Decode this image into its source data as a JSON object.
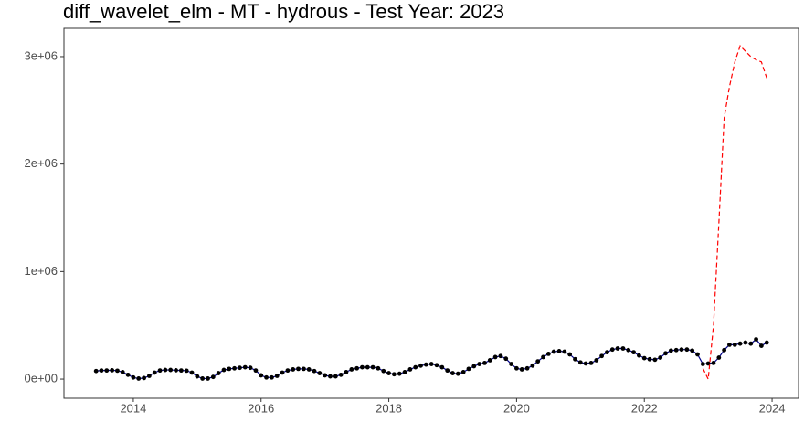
{
  "chart_data": {
    "type": "line",
    "title": "diff_wavelet_elm - MT - hydrous - Test Year: 2023",
    "xlim": [
      2012.914,
      2024.414
    ],
    "xticks": [
      2014,
      2016,
      2018,
      2020,
      2022,
      2024
    ],
    "ylim": [
      -178000,
      3263000
    ],
    "yticks": [
      {
        "value": 0,
        "label": "0e+00"
      },
      {
        "value": 1000000,
        "label": "1e+06"
      },
      {
        "value": 2000000,
        "label": "2e+06"
      },
      {
        "value": 3000000,
        "label": "3e+06"
      }
    ],
    "grid": false,
    "series": [
      {
        "color": "#00008b",
        "point_color": "#000000",
        "linestyle": "solid",
        "markers": true,
        "x": [
          2013.417,
          2013.5,
          2013.583,
          2013.667,
          2013.75,
          2013.833,
          2013.917,
          2014,
          2014.083,
          2014.167,
          2014.25,
          2014.333,
          2014.417,
          2014.5,
          2014.583,
          2014.667,
          2014.75,
          2014.833,
          2014.917,
          2015,
          2015.083,
          2015.167,
          2015.25,
          2015.333,
          2015.417,
          2015.5,
          2015.583,
          2015.667,
          2015.75,
          2015.833,
          2015.917,
          2016,
          2016.083,
          2016.167,
          2016.25,
          2016.333,
          2016.417,
          2016.5,
          2016.583,
          2016.667,
          2016.75,
          2016.833,
          2016.917,
          2017,
          2017.083,
          2017.167,
          2017.25,
          2017.333,
          2017.417,
          2017.5,
          2017.583,
          2017.667,
          2017.75,
          2017.833,
          2017.917,
          2018,
          2018.083,
          2018.167,
          2018.25,
          2018.333,
          2018.417,
          2018.5,
          2018.583,
          2018.667,
          2018.75,
          2018.833,
          2018.917,
          2019,
          2019.083,
          2019.167,
          2019.25,
          2019.333,
          2019.417,
          2019.5,
          2019.583,
          2019.667,
          2019.75,
          2019.833,
          2019.917,
          2020,
          2020.083,
          2020.167,
          2020.25,
          2020.333,
          2020.417,
          2020.5,
          2020.583,
          2020.667,
          2020.75,
          2020.833,
          2020.917,
          2021,
          2021.083,
          2021.167,
          2021.25,
          2021.333,
          2021.417,
          2021.5,
          2021.583,
          2021.667,
          2021.75,
          2021.833,
          2021.917,
          2022,
          2022.083,
          2022.167,
          2022.25,
          2022.333,
          2022.417,
          2022.5,
          2022.583,
          2022.667,
          2022.75,
          2022.833,
          2022.917,
          2023,
          2023.083,
          2023.167,
          2023.25,
          2023.333,
          2023.417,
          2023.5,
          2023.583,
          2023.667,
          2023.75,
          2023.833,
          2023.917
        ],
        "values": [
          75000,
          80000,
          80000,
          82000,
          78000,
          65000,
          40000,
          15000,
          5000,
          10000,
          30000,
          60000,
          80000,
          85000,
          85000,
          82000,
          80000,
          78000,
          60000,
          25000,
          5000,
          5000,
          20000,
          55000,
          85000,
          95000,
          100000,
          105000,
          110000,
          105000,
          80000,
          35000,
          15000,
          15000,
          30000,
          60000,
          80000,
          90000,
          95000,
          95000,
          90000,
          75000,
          55000,
          35000,
          25000,
          25000,
          40000,
          65000,
          90000,
          100000,
          110000,
          110000,
          110000,
          100000,
          75000,
          55000,
          45000,
          50000,
          65000,
          90000,
          110000,
          125000,
          135000,
          140000,
          130000,
          110000,
          80000,
          55000,
          50000,
          65000,
          95000,
          120000,
          140000,
          150000,
          175000,
          205000,
          215000,
          190000,
          140000,
          100000,
          90000,
          100000,
          125000,
          165000,
          205000,
          235000,
          255000,
          260000,
          255000,
          230000,
          185000,
          155000,
          145000,
          150000,
          175000,
          215000,
          250000,
          275000,
          285000,
          285000,
          270000,
          250000,
          220000,
          195000,
          185000,
          180000,
          200000,
          240000,
          265000,
          270000,
          275000,
          275000,
          265000,
          230000,
          140000,
          145000,
          150000,
          200000,
          270000,
          320000,
          320000,
          330000,
          340000,
          330000,
          370000,
          310000,
          340000
        ]
      },
      {
        "color": "#ff0000",
        "linestyle": "dashed",
        "markers": false,
        "x": [
          2022.917,
          2023,
          2023.083,
          2023.167,
          2023.25,
          2023.333,
          2023.417,
          2023.5,
          2023.583,
          2023.667,
          2023.75,
          2023.833,
          2023.917
        ],
        "values": [
          100000,
          0,
          500000,
          1450000,
          2430000,
          2720000,
          2950000,
          3100000,
          3050000,
          3000000,
          2970000,
          2950000,
          2800000
        ]
      }
    ]
  }
}
